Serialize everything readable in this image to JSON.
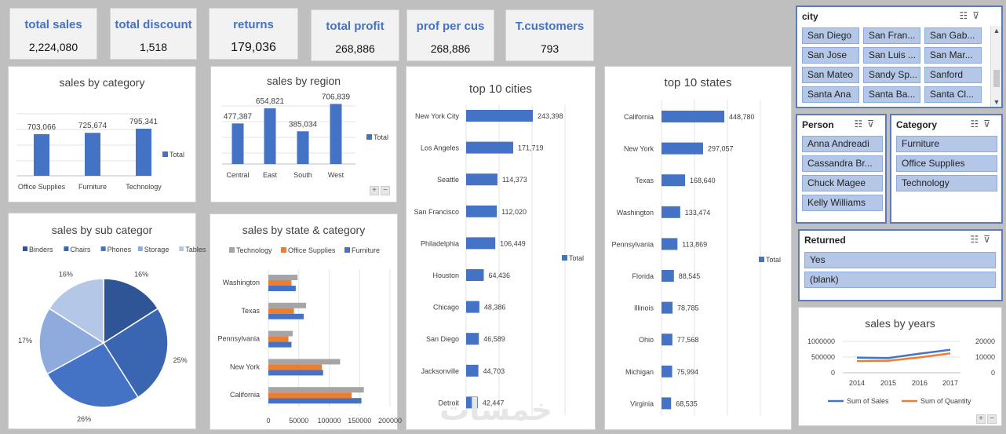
{
  "kpis": [
    {
      "title": "total sales",
      "value": "2,224,080"
    },
    {
      "title": "total discount",
      "value": "1,518"
    },
    {
      "title": "returns",
      "value": "179,036"
    },
    {
      "title": "total profit",
      "value": "268,886"
    },
    {
      "title": "prof per cus",
      "value": "268,886"
    },
    {
      "title": "T.customers",
      "value": "793"
    }
  ],
  "colors": {
    "blue": "#4472c4",
    "orange": "#ed7d31",
    "gray": "#a5a5a5"
  },
  "watermark": "خمسات",
  "chart_data": [
    {
      "type": "bar",
      "title": "sales by category",
      "categories": [
        "Office Supplies",
        "Furniture",
        "Technology"
      ],
      "values": [
        703066,
        725674,
        795341
      ],
      "labels": [
        "703,066",
        "725,674",
        "795,341"
      ],
      "legend": "Total"
    },
    {
      "type": "bar",
      "title": "sales by region",
      "categories": [
        "Central",
        "East",
        "South",
        "West"
      ],
      "values": [
        477387,
        654821,
        385034,
        706839
      ],
      "labels": [
        "477,387",
        "654,821",
        "385,034",
        "706,839"
      ],
      "legend": "Total"
    },
    {
      "type": "bar",
      "orientation": "horizontal",
      "title": "top 10 cities",
      "categories": [
        "New York City",
        "Los Angeles",
        "Seattle",
        "San Francisco",
        "Philadelphia",
        "Houston",
        "Chicago",
        "San Diego",
        "Jacksonville",
        "Detroit"
      ],
      "values": [
        243398,
        171719,
        114373,
        112020,
        106449,
        64436,
        48386,
        46589,
        44703,
        42447
      ],
      "labels": [
        "243,398",
        "171,719",
        "114,373",
        "112,020",
        "106,449",
        "64,436",
        "48,386",
        "46,589",
        "44,703",
        "42,447"
      ],
      "legend": "Total"
    },
    {
      "type": "bar",
      "orientation": "horizontal",
      "title": "top 10 states",
      "categories": [
        "California",
        "New York",
        "Texas",
        "Washington",
        "Pennsylvania",
        "Florida",
        "Illinois",
        "Ohio",
        "Michigan",
        "Virginia"
      ],
      "values": [
        448780,
        297057,
        168640,
        133474,
        113869,
        88545,
        78785,
        77568,
        75994,
        68535
      ],
      "labels": [
        "448,780",
        "297,057",
        "168,640",
        "133,474",
        "113,869",
        "88,545",
        "78,785",
        "77,568",
        "75,994",
        "68,535"
      ],
      "legend": "Total"
    },
    {
      "type": "pie",
      "title": "sales by sub categor",
      "categories": [
        "Binders",
        "Chairs",
        "Phones",
        "Storage",
        "Tables"
      ],
      "values": [
        16,
        25,
        26,
        17,
        16
      ],
      "labels": [
        "16%",
        "25%",
        "26%",
        "17%",
        "16%"
      ],
      "colors": [
        "#2f5597",
        "#3a65b0",
        "#4472c4",
        "#8faadc",
        "#b4c7e7"
      ]
    },
    {
      "type": "bar",
      "orientation": "horizontal",
      "title": "sales by state & category",
      "categories": [
        "Washington",
        "Texas",
        "Pennsylvania",
        "New York",
        "California"
      ],
      "series": [
        {
          "name": "Technology",
          "values": [
            48000,
            62000,
            40000,
            118000,
            157000
          ]
        },
        {
          "name": "Office Supplies",
          "values": [
            38000,
            42000,
            33000,
            88000,
            137000
          ]
        },
        {
          "name": "Furniture",
          "values": [
            45000,
            58000,
            38000,
            90000,
            153000
          ]
        }
      ],
      "xlim": [
        0,
        200000
      ],
      "xticks": [
        "0",
        "50000",
        "100000",
        "150000",
        "200000"
      ]
    },
    {
      "type": "line",
      "title": "sales by years",
      "x": [
        "2014",
        "2015",
        "2016",
        "2017"
      ],
      "series": [
        {
          "name": "Sum of Sales",
          "axis": "left",
          "values": [
            484000,
            470000,
            609000,
            733000
          ]
        },
        {
          "name": "Sum of Quantity",
          "axis": "right",
          "values": [
            7500,
            7700,
            9800,
            12400
          ]
        }
      ],
      "ylim_left": [
        0,
        1000000
      ],
      "ylim_right": [
        0,
        20000
      ],
      "yticks_left": [
        "1000000",
        "500000",
        "0"
      ],
      "yticks_right": [
        "20000",
        "10000",
        "0"
      ]
    }
  ],
  "slicers": {
    "city": {
      "title": "city",
      "items": [
        "San Diego",
        "San Fran...",
        "San Gab...",
        "San Jose",
        "San Luis ...",
        "San Mar...",
        "San Mateo",
        "Sandy Sp...",
        "Sanford",
        "Santa Ana",
        "Santa Ba...",
        "Santa Cl..."
      ]
    },
    "person": {
      "title": "Person",
      "items": [
        "Anna Andreadi",
        "Cassandra Br...",
        "Chuck Magee",
        "Kelly Williams"
      ]
    },
    "category": {
      "title": "Category",
      "items": [
        "Furniture",
        "Office Supplies",
        "Technology"
      ]
    },
    "returned": {
      "title": "Returned",
      "items": [
        "Yes",
        "(blank)"
      ]
    }
  }
}
